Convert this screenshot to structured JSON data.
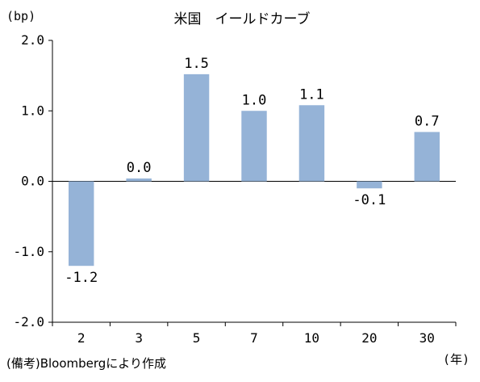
{
  "chart_data": {
    "type": "bar",
    "title": "米国　イールドカーブ",
    "ylabel": "(bp)",
    "xlabel": "(年)",
    "categories": [
      "2",
      "3",
      "5",
      "7",
      "10",
      "20",
      "30"
    ],
    "values": [
      -1.2,
      0.04,
      1.52,
      1.0,
      1.08,
      -0.1,
      0.7
    ],
    "data_labels": [
      "-1.2",
      "0.0",
      "1.5",
      "1.0",
      "1.1",
      "-0.1",
      "0.7"
    ],
    "ylim": [
      -2.0,
      2.0
    ],
    "yticks": [
      "-2.0",
      "-1.0",
      "0.0",
      "1.0",
      "2.0"
    ],
    "yticks_values": [
      -2.0,
      -1.0,
      0.0,
      1.0,
      2.0
    ],
    "grid": false,
    "bar_color": "#95b3d7",
    "note": "(備考)Bloombergにより作成"
  }
}
